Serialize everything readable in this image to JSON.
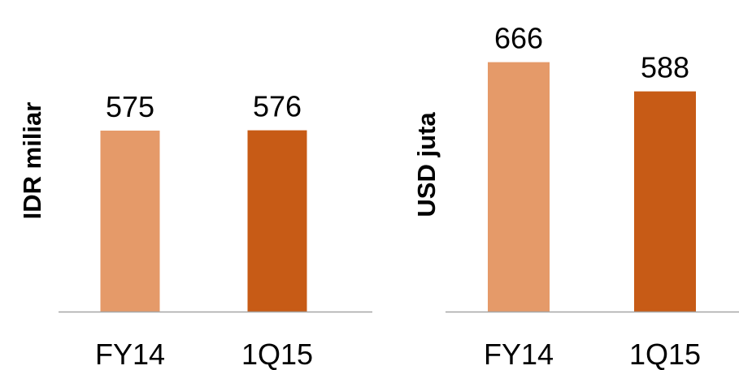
{
  "colors": {
    "light_bar": "#E59A69",
    "dark_bar": "#C75B16",
    "axis": "#A6A6A6",
    "text": "#000000"
  },
  "chart_data": [
    {
      "type": "bar",
      "ylabel": "IDR miliar",
      "categories": [
        "FY14",
        "1Q15"
      ],
      "values": [
        575,
        576
      ],
      "value_labels": [
        "575",
        "576"
      ],
      "ylim": [
        0,
        990
      ],
      "grid": false,
      "bar_colors": [
        "#E59A69",
        "#C75B16"
      ]
    },
    {
      "type": "bar",
      "ylabel": "USD juta",
      "categories": [
        "FY14",
        "1Q15"
      ],
      "values": [
        666,
        588
      ],
      "value_labels": [
        "666",
        "588"
      ],
      "ylim": [
        0,
        832
      ],
      "grid": false,
      "bar_colors": [
        "#E59A69",
        "#C75B16"
      ]
    }
  ]
}
